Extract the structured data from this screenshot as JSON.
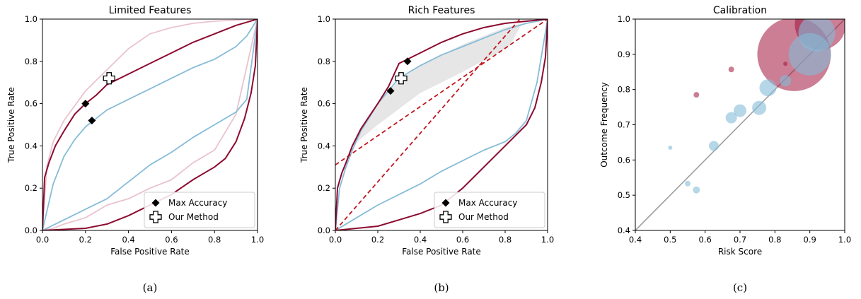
{
  "colors": {
    "red": "#8c0a2f",
    "blue": "#86bcd8",
    "pink": "#e9c3cf",
    "paleblue": "#cfe3ef",
    "dashed": "#c0161f",
    "diag": "#999999",
    "fill": "#e6e6e6"
  },
  "legend": {
    "items": [
      {
        "label": "Max Accuracy",
        "marker": "diamond"
      },
      {
        "label": "Our Method",
        "marker": "plus"
      }
    ]
  },
  "charts": [
    {
      "caption": "(a)",
      "chart_data": {
        "type": "line",
        "title": "Limited Features",
        "xlabel": "False Positive Rate",
        "ylabel": "True Positive Rate",
        "xlim": [
          0,
          1
        ],
        "ylim": [
          0,
          1
        ],
        "grid": false,
        "legend_position": "lower-right",
        "xticks": [
          "0.0",
          "0.2",
          "0.4",
          "0.6",
          "0.8",
          "1.0"
        ],
        "yticks": [
          "0.0",
          "0.2",
          "0.4",
          "0.6",
          "0.8",
          "1.0"
        ],
        "series": [
          {
            "role": "upper",
            "color": "red",
            "x": [
              0,
              0.01,
              0.03,
              0.06,
              0.1,
              0.15,
              0.2,
              0.25,
              0.3,
              0.4,
              0.5,
              0.6,
              0.7,
              0.8,
              0.9,
              1
            ],
            "y": [
              0,
              0.25,
              0.32,
              0.4,
              0.47,
              0.55,
              0.6,
              0.64,
              0.69,
              0.74,
              0.79,
              0.84,
              0.89,
              0.93,
              0.97,
              1
            ]
          },
          {
            "role": "upper",
            "color": "blue",
            "x": [
              0,
              0.05,
              0.1,
              0.15,
              0.2,
              0.3,
              0.4,
              0.5,
              0.6,
              0.7,
              0.8,
              0.9,
              0.95,
              1
            ],
            "y": [
              0,
              0.22,
              0.35,
              0.43,
              0.49,
              0.57,
              0.62,
              0.67,
              0.72,
              0.77,
              0.81,
              0.87,
              0.92,
              1
            ]
          },
          {
            "role": "upper",
            "color": "pink",
            "x": [
              0,
              0.02,
              0.05,
              0.1,
              0.2,
              0.3,
              0.4,
              0.5,
              0.6,
              0.7,
              0.8,
              1
            ],
            "y": [
              0,
              0.3,
              0.42,
              0.52,
              0.66,
              0.76,
              0.86,
              0.93,
              0.96,
              0.98,
              0.99,
              1
            ]
          },
          {
            "role": "lower",
            "color": "red",
            "x": [
              0,
              0.2,
              0.3,
              0.4,
              0.5,
              0.6,
              0.7,
              0.8,
              0.85,
              0.9,
              0.94,
              0.97,
              0.99,
              1
            ],
            "y": [
              0,
              0.01,
              0.03,
              0.07,
              0.12,
              0.17,
              0.24,
              0.3,
              0.34,
              0.42,
              0.53,
              0.65,
              0.78,
              1
            ]
          },
          {
            "role": "lower",
            "color": "blue",
            "x": [
              0,
              0.1,
              0.2,
              0.3,
              0.4,
              0.5,
              0.6,
              0.7,
              0.8,
              0.9,
              0.95,
              1
            ],
            "y": [
              0,
              0.05,
              0.1,
              0.15,
              0.23,
              0.31,
              0.37,
              0.44,
              0.5,
              0.56,
              0.62,
              1
            ]
          },
          {
            "role": "lower",
            "color": "pink",
            "x": [
              0,
              0.05,
              0.1,
              0.2,
              0.3,
              0.4,
              0.5,
              0.6,
              0.7,
              0.8,
              0.9,
              1
            ],
            "y": [
              0,
              0.01,
              0.03,
              0.06,
              0.12,
              0.15,
              0.2,
              0.24,
              0.32,
              0.38,
              0.55,
              1
            ]
          }
        ],
        "markers": [
          {
            "type": "diamond",
            "x": 0.2,
            "y": 0.6
          },
          {
            "type": "diamond",
            "x": 0.23,
            "y": 0.52
          },
          {
            "type": "plus",
            "x": 0.31,
            "y": 0.72
          }
        ]
      }
    },
    {
      "caption": "(b)",
      "chart_data": {
        "type": "line",
        "title": "Rich Features",
        "xlabel": "False Positive Rate",
        "ylabel": "True Positive Rate",
        "xlim": [
          0,
          1
        ],
        "ylim": [
          0,
          1
        ],
        "grid": false,
        "legend_position": "lower-right",
        "xticks": [
          "0.0",
          "0.2",
          "0.4",
          "0.6",
          "0.8",
          "1.0"
        ],
        "yticks": [
          "0.0",
          "0.2",
          "0.4",
          "0.6",
          "0.8",
          "1.0"
        ],
        "shaded_region": {
          "x": [
            0.08,
            0.2,
            0.3,
            0.4,
            0.5,
            0.6,
            0.7,
            0.8,
            0.88,
            0.82,
            0.6,
            0.4,
            0.2,
            0.08
          ],
          "y": [
            0.4,
            0.6,
            0.71,
            0.78,
            0.83,
            0.88,
            0.92,
            0.96,
            0.98,
            0.87,
            0.75,
            0.65,
            0.5,
            0.4
          ]
        },
        "dashed_lines": [
          {
            "x": [
              0,
              1
            ],
            "y": [
              0.31,
              1.0
            ]
          },
          {
            "x": [
              0,
              1
            ],
            "y": [
              0.0,
              1.15
            ]
          }
        ],
        "series": [
          {
            "role": "upper",
            "color": "red",
            "x": [
              0,
              0.01,
              0.03,
              0.05,
              0.08,
              0.12,
              0.2,
              0.25,
              0.3,
              0.4,
              0.5,
              0.6,
              0.7,
              0.8,
              0.9,
              1
            ],
            "y": [
              0,
              0.2,
              0.27,
              0.32,
              0.4,
              0.48,
              0.6,
              0.68,
              0.79,
              0.84,
              0.89,
              0.93,
              0.96,
              0.98,
              0.99,
              1
            ]
          },
          {
            "role": "upper",
            "color": "blue",
            "x": [
              0,
              0.02,
              0.05,
              0.08,
              0.12,
              0.2,
              0.3,
              0.4,
              0.5,
              0.6,
              0.7,
              0.8,
              0.9,
              1
            ],
            "y": [
              0,
              0.2,
              0.3,
              0.38,
              0.47,
              0.6,
              0.72,
              0.78,
              0.83,
              0.87,
              0.91,
              0.95,
              0.98,
              1
            ]
          },
          {
            "role": "lower",
            "color": "red",
            "x": [
              0,
              0.2,
              0.3,
              0.4,
              0.5,
              0.6,
              0.7,
              0.8,
              0.85,
              0.9,
              0.94,
              0.97,
              0.99,
              1
            ],
            "y": [
              0,
              0.02,
              0.05,
              0.08,
              0.12,
              0.2,
              0.3,
              0.4,
              0.45,
              0.5,
              0.58,
              0.7,
              0.82,
              1
            ]
          },
          {
            "role": "lower",
            "color": "blue",
            "x": [
              0,
              0.1,
              0.2,
              0.3,
              0.4,
              0.5,
              0.6,
              0.7,
              0.8,
              0.85,
              0.9,
              0.95,
              1
            ],
            "y": [
              0,
              0.06,
              0.12,
              0.17,
              0.22,
              0.28,
              0.33,
              0.38,
              0.42,
              0.46,
              0.52,
              0.7,
              1
            ]
          }
        ],
        "markers": [
          {
            "type": "diamond",
            "x": 0.34,
            "y": 0.8
          },
          {
            "type": "diamond",
            "x": 0.26,
            "y": 0.66
          },
          {
            "type": "plus",
            "x": 0.31,
            "y": 0.72
          }
        ]
      }
    },
    {
      "caption": "(c)",
      "chart_data": {
        "type": "scatter",
        "title": "Calibration",
        "xlabel": "Risk Score",
        "ylabel": "Outcome Frequency",
        "xlim": [
          0.4,
          1.0
        ],
        "ylim": [
          0.4,
          1.0
        ],
        "grid": false,
        "xticks": [
          "0.4",
          "0.5",
          "0.6",
          "0.7",
          "0.8",
          "0.9",
          "1.0"
        ],
        "yticks": [
          "0.4",
          "0.5",
          "0.6",
          "0.7",
          "0.8",
          "0.9",
          "1.0"
        ],
        "reference_line": {
          "x": [
            0.4,
            1.0
          ],
          "y": [
            0.4,
            1.0
          ]
        },
        "series": [
          {
            "color": "blue",
            "x": [
              0.5,
              0.55,
              0.575,
              0.625,
              0.675,
              0.7,
              0.755,
              0.78,
              0.83,
              0.9,
              0.92
            ],
            "y": [
              0.635,
              0.533,
              0.515,
              0.64,
              0.72,
              0.74,
              0.748,
              0.805,
              0.825,
              0.9,
              0.96
            ],
            "size": [
              3,
              4,
              5,
              7,
              8,
              9,
              10,
              12,
              8,
              30,
              26
            ]
          },
          {
            "color": "red",
            "x": [
              0.575,
              0.675,
              0.83,
              0.855,
              0.93
            ],
            "y": [
              0.785,
              0.857,
              0.873,
              0.9,
              0.985
            ],
            "size": [
              4,
              4,
              3,
              52,
              36
            ]
          }
        ]
      }
    }
  ]
}
